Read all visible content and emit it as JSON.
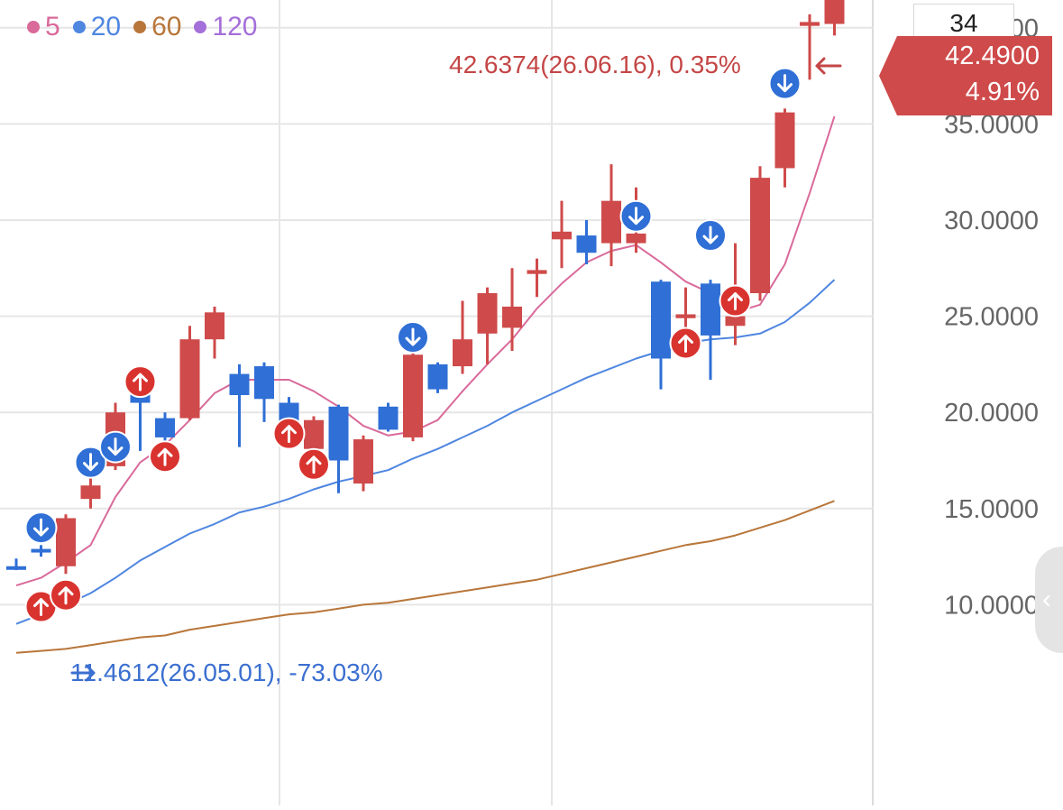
{
  "legend": [
    {
      "label": "5",
      "color": "#d96a9a"
    },
    {
      "label": "20",
      "color": "#4f86e0"
    },
    {
      "label": "60",
      "color": "#b8763a"
    },
    {
      "label": "120",
      "color": "#a46fd9"
    }
  ],
  "top_box": {
    "value": "34"
  },
  "price_tag": {
    "value": "42.4900",
    "change": "4.91%",
    "color": "#cf4a4a"
  },
  "annotations": {
    "high": {
      "text": "42.6374(26.06.16), 0.35%"
    },
    "low": {
      "text": "11.4612(26.05.01), -73.03%"
    }
  },
  "colors": {
    "up": "#cf4a4a",
    "down": "#2f6fd6",
    "signal_up": "#d9332f",
    "signal_down": "#2f6fd6"
  },
  "chart_data": {
    "type": "candlestick",
    "y_range": [
      7.5,
      42.5
    ],
    "y_ticks": [
      "40.0000",
      "35.0000",
      "30.0000",
      "25.0000",
      "20.0000",
      "15.0000",
      "10.0000"
    ],
    "tick_values": [
      40,
      35,
      30,
      25,
      20,
      15,
      10
    ],
    "candles": [
      {
        "o": 12.0,
        "h": 12.4,
        "l": 11.8,
        "c": 11.9
      },
      {
        "o": 12.9,
        "h": 13.1,
        "l": 12.5,
        "c": 12.8
      },
      {
        "o": 12.0,
        "h": 14.7,
        "l": 11.6,
        "c": 14.5
      },
      {
        "o": 15.5,
        "h": 16.7,
        "l": 15.0,
        "c": 16.2
      },
      {
        "o": 17.2,
        "h": 20.5,
        "l": 17.0,
        "c": 20.0
      },
      {
        "o": 21.0,
        "h": 21.5,
        "l": 18.0,
        "c": 20.5
      },
      {
        "o": 19.7,
        "h": 20.0,
        "l": 18.0,
        "c": 18.7
      },
      {
        "o": 19.7,
        "h": 24.5,
        "l": 19.6,
        "c": 23.8
      },
      {
        "o": 23.8,
        "h": 25.5,
        "l": 22.8,
        "c": 25.2
      },
      {
        "o": 22.0,
        "h": 22.5,
        "l": 18.2,
        "c": 20.9
      },
      {
        "o": 22.4,
        "h": 22.6,
        "l": 19.5,
        "c": 20.7
      },
      {
        "o": 20.5,
        "h": 20.8,
        "l": 18.7,
        "c": 19.5
      },
      {
        "o": 18.1,
        "h": 19.8,
        "l": 17.5,
        "c": 19.6
      },
      {
        "o": 20.3,
        "h": 20.4,
        "l": 15.8,
        "c": 17.5
      },
      {
        "o": 16.3,
        "h": 18.8,
        "l": 15.9,
        "c": 18.6
      },
      {
        "o": 20.3,
        "h": 20.5,
        "l": 19.0,
        "c": 19.1
      },
      {
        "o": 18.7,
        "h": 23.2,
        "l": 18.5,
        "c": 23.0
      },
      {
        "o": 22.5,
        "h": 22.6,
        "l": 21.0,
        "c": 21.2
      },
      {
        "o": 22.4,
        "h": 25.8,
        "l": 22.0,
        "c": 23.8
      },
      {
        "o": 24.1,
        "h": 26.5,
        "l": 22.5,
        "c": 26.2
      },
      {
        "o": 24.4,
        "h": 27.5,
        "l": 23.2,
        "c": 25.5
      },
      {
        "o": 27.2,
        "h": 28.0,
        "l": 26.0,
        "c": 27.4
      },
      {
        "o": 29.0,
        "h": 31.0,
        "l": 27.5,
        "c": 29.4
      },
      {
        "o": 29.2,
        "h": 30.0,
        "l": 27.7,
        "c": 28.3
      },
      {
        "o": 28.8,
        "h": 32.9,
        "l": 27.6,
        "c": 31.0
      },
      {
        "o": 28.8,
        "h": 31.7,
        "l": 28.3,
        "c": 29.3
      },
      {
        "o": 26.8,
        "h": 26.9,
        "l": 21.2,
        "c": 22.8
      },
      {
        "o": 24.9,
        "h": 26.5,
        "l": 23.5,
        "c": 25.1
      },
      {
        "o": 26.7,
        "h": 26.9,
        "l": 21.7,
        "c": 24.0
      },
      {
        "o": 24.5,
        "h": 28.8,
        "l": 23.5,
        "c": 25.0
      },
      {
        "o": 26.2,
        "h": 32.8,
        "l": 25.8,
        "c": 32.2
      },
      {
        "o": 32.7,
        "h": 35.8,
        "l": 31.7,
        "c": 35.6
      },
      {
        "o": 40.1,
        "h": 40.7,
        "l": 37.3,
        "c": 40.3
      },
      {
        "o": 40.2,
        "h": 42.5,
        "l": 39.6,
        "c": 42.4
      }
    ],
    "ma_series": [
      {
        "period": 5,
        "color": "#d96a9a",
        "values": [
          11.0,
          11.4,
          12.2,
          13.1,
          15.6,
          17.4,
          18.3,
          19.6,
          21.0,
          21.7,
          21.7,
          21.7,
          21.1,
          20.3,
          19.3,
          18.8,
          19.0,
          19.6,
          21.1,
          22.5,
          23.8,
          25.4,
          26.7,
          27.8,
          28.4,
          28.7,
          27.8,
          26.8,
          26.2,
          25.2,
          25.6,
          27.7,
          31.4,
          35.4
        ]
      },
      {
        "period": 20,
        "color": "#4f86e0",
        "values": [
          9.0,
          9.5,
          10.0,
          10.6,
          11.4,
          12.3,
          13.0,
          13.7,
          14.2,
          14.8,
          15.1,
          15.5,
          16.0,
          16.4,
          16.7,
          17.0,
          17.6,
          18.1,
          18.7,
          19.3,
          20.0,
          20.6,
          21.2,
          21.8,
          22.3,
          22.8,
          23.2,
          23.6,
          23.8,
          23.9,
          24.1,
          24.7,
          25.7,
          26.9
        ]
      },
      {
        "period": 60,
        "color": "#b8763a",
        "values": [
          7.5,
          7.6,
          7.7,
          7.9,
          8.1,
          8.3,
          8.4,
          8.7,
          8.9,
          9.1,
          9.3,
          9.5,
          9.6,
          9.8,
          10.0,
          10.1,
          10.3,
          10.5,
          10.7,
          10.9,
          11.1,
          11.3,
          11.6,
          11.9,
          12.2,
          12.5,
          12.8,
          13.1,
          13.3,
          13.6,
          14.0,
          14.4,
          14.9,
          15.4
        ]
      }
    ],
    "signals": [
      {
        "i": 1,
        "type": "down",
        "price": 14.0
      },
      {
        "i": 1,
        "type": "up",
        "price": 9.9
      },
      {
        "i": 2,
        "type": "up",
        "price": 10.5
      },
      {
        "i": 3,
        "type": "down",
        "price": 17.4
      },
      {
        "i": 4,
        "type": "down",
        "price": 18.2
      },
      {
        "i": 5,
        "type": "up",
        "price": 21.6
      },
      {
        "i": 6,
        "type": "up",
        "price": 17.7
      },
      {
        "i": 11,
        "type": "up",
        "price": 18.9
      },
      {
        "i": 12,
        "type": "up",
        "price": 17.3
      },
      {
        "i": 16,
        "type": "down",
        "price": 23.9
      },
      {
        "i": 25,
        "type": "down",
        "price": 30.2
      },
      {
        "i": 27,
        "type": "up",
        "price": 23.6
      },
      {
        "i": 28,
        "type": "down",
        "price": 29.2
      },
      {
        "i": 29,
        "type": "up",
        "price": 25.8
      },
      {
        "i": 31,
        "type": "down",
        "price": 37.1
      }
    ],
    "high_marker": {
      "value": 42.6374,
      "date": "26.06.16",
      "pct": 0.35,
      "index": 33
    },
    "low_marker": {
      "value": 11.4612,
      "date": "26.05.01",
      "pct": -73.03,
      "index": 2
    }
  }
}
